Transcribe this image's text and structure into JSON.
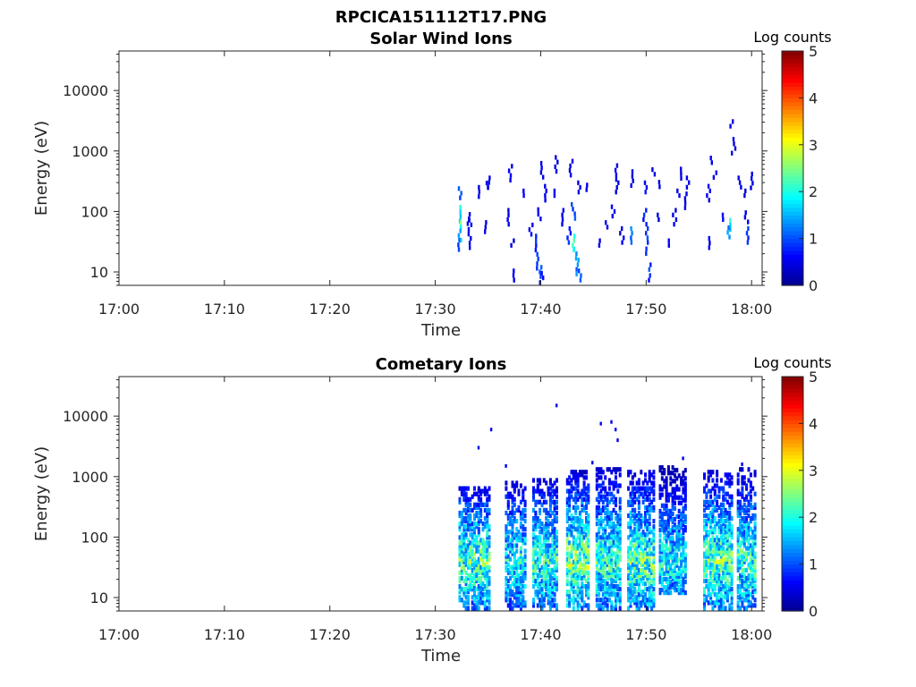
{
  "figure": {
    "title": "RPCICA151112T17.PNG"
  },
  "colormap": [
    "#00008f",
    "#0000ff",
    "#0080ff",
    "#00ffff",
    "#80ff80",
    "#ffff00",
    "#ff8000",
    "#ff0000",
    "#800000"
  ],
  "chart_data": [
    {
      "type": "heatmap",
      "title": "Solar Wind Ions",
      "xlabel": "Time",
      "ylabel": "Energy (eV)",
      "x_ticks": [
        "17:00",
        "17:10",
        "17:20",
        "17:30",
        "17:40",
        "17:50",
        "18:00"
      ],
      "x_range_min": [
        0,
        61
      ],
      "y_scale": "log",
      "y_ticks": [
        "10",
        "100",
        "1000",
        "10000"
      ],
      "y_range_eV": [
        6,
        45000
      ],
      "colorbar": {
        "title": "Log counts",
        "range": [
          0,
          5
        ],
        "ticks": [
          "0",
          "1",
          "2",
          "3",
          "4",
          "5"
        ]
      },
      "description_points": [
        {
          "t": 32.2,
          "e": 200,
          "c": 1.0
        },
        {
          "t": 32.2,
          "e": 90,
          "c": 1.8
        },
        {
          "t": 32.2,
          "e": 60,
          "c": 2.2
        },
        {
          "t": 32.2,
          "e": 40,
          "c": 1.5
        },
        {
          "t": 32.2,
          "e": 28,
          "c": 1.0
        },
        {
          "t": 33.0,
          "e": 75,
          "c": 0.5
        },
        {
          "t": 33.2,
          "e": 55,
          "c": 0.5
        },
        {
          "t": 33.2,
          "e": 30,
          "c": 0.5
        },
        {
          "t": 34.2,
          "e": 210,
          "c": 0.5
        },
        {
          "t": 34.8,
          "e": 270,
          "c": 0.5
        },
        {
          "t": 34.6,
          "e": 55,
          "c": 0.5
        },
        {
          "t": 35.0,
          "e": 300,
          "c": 0.5
        },
        {
          "t": 36.8,
          "e": 80,
          "c": 0.5
        },
        {
          "t": 37.0,
          "e": 430,
          "c": 0.5
        },
        {
          "t": 37.2,
          "e": 30,
          "c": 0.5
        },
        {
          "t": 37.4,
          "e": 8,
          "c": 0.5
        },
        {
          "t": 38.2,
          "e": 200,
          "c": 0.5
        },
        {
          "t": 39.0,
          "e": 50,
          "c": 0.6
        },
        {
          "t": 39.4,
          "e": 30,
          "c": 0.8
        },
        {
          "t": 39.6,
          "e": 15,
          "c": 1.0
        },
        {
          "t": 39.8,
          "e": 10,
          "c": 1.0
        },
        {
          "t": 40.0,
          "e": 8,
          "c": 0.7
        },
        {
          "t": 39.8,
          "e": 90,
          "c": 0.6
        },
        {
          "t": 40.0,
          "e": 480,
          "c": 0.5
        },
        {
          "t": 40.4,
          "e": 200,
          "c": 0.5
        },
        {
          "t": 41.2,
          "e": 200,
          "c": 0.5
        },
        {
          "t": 41.4,
          "e": 600,
          "c": 0.5
        },
        {
          "t": 42.0,
          "e": 80,
          "c": 0.5
        },
        {
          "t": 42.6,
          "e": 40,
          "c": 0.8
        },
        {
          "t": 43.0,
          "e": 100,
          "c": 1.0
        },
        {
          "t": 43.0,
          "e": 30,
          "c": 2.0
        },
        {
          "t": 43.2,
          "e": 20,
          "c": 1.6
        },
        {
          "t": 43.4,
          "e": 12,
          "c": 1.2
        },
        {
          "t": 43.6,
          "e": 8,
          "c": 1.0
        },
        {
          "t": 42.8,
          "e": 520,
          "c": 0.5
        },
        {
          "t": 43.6,
          "e": 250,
          "c": 0.5
        },
        {
          "t": 44.2,
          "e": 250,
          "c": 0.5
        },
        {
          "t": 45.4,
          "e": 30,
          "c": 0.5
        },
        {
          "t": 46.2,
          "e": 60,
          "c": 0.5
        },
        {
          "t": 46.8,
          "e": 100,
          "c": 0.5
        },
        {
          "t": 47.0,
          "e": 440,
          "c": 0.5
        },
        {
          "t": 47.2,
          "e": 250,
          "c": 0.5
        },
        {
          "t": 47.6,
          "e": 40,
          "c": 0.5
        },
        {
          "t": 48.4,
          "e": 40,
          "c": 1.2
        },
        {
          "t": 48.6,
          "e": 350,
          "c": 0.5
        },
        {
          "t": 49.8,
          "e": 250,
          "c": 0.6
        },
        {
          "t": 49.8,
          "e": 80,
          "c": 0.8
        },
        {
          "t": 50.0,
          "e": 40,
          "c": 1.0
        },
        {
          "t": 50.0,
          "e": 22,
          "c": 1.0
        },
        {
          "t": 50.2,
          "e": 12,
          "c": 0.9
        },
        {
          "t": 50.2,
          "e": 8,
          "c": 0.8
        },
        {
          "t": 50.6,
          "e": 450,
          "c": 0.5
        },
        {
          "t": 51.0,
          "e": 80,
          "c": 0.5
        },
        {
          "t": 51.2,
          "e": 280,
          "c": 0.5
        },
        {
          "t": 52.2,
          "e": 30,
          "c": 0.5
        },
        {
          "t": 52.6,
          "e": 80,
          "c": 0.5
        },
        {
          "t": 53.0,
          "e": 200,
          "c": 0.5
        },
        {
          "t": 53.2,
          "e": 420,
          "c": 0.5
        },
        {
          "t": 53.6,
          "e": 150,
          "c": 0.5
        },
        {
          "t": 53.8,
          "e": 300,
          "c": 0.5
        },
        {
          "t": 55.8,
          "e": 200,
          "c": 0.5
        },
        {
          "t": 56.0,
          "e": 30,
          "c": 0.5
        },
        {
          "t": 56.2,
          "e": 700,
          "c": 0.5
        },
        {
          "t": 56.4,
          "e": 400,
          "c": 0.5
        },
        {
          "t": 57.2,
          "e": 80,
          "c": 0.6
        },
        {
          "t": 57.8,
          "e": 60,
          "c": 1.8
        },
        {
          "t": 57.8,
          "e": 45,
          "c": 1.2
        },
        {
          "t": 58.2,
          "e": 1200,
          "c": 0.5
        },
        {
          "t": 58.8,
          "e": 300,
          "c": 0.5
        },
        {
          "t": 59.2,
          "e": 200,
          "c": 0.5
        },
        {
          "t": 59.4,
          "e": 80,
          "c": 0.6
        },
        {
          "t": 59.6,
          "e": 40,
          "c": 0.8
        },
        {
          "t": 60.0,
          "e": 320,
          "c": 0.5
        },
        {
          "t": 58.0,
          "e": 2800,
          "c": 0.5
        }
      ]
    },
    {
      "type": "heatmap",
      "title": "Cometary Ions",
      "xlabel": "Time",
      "ylabel": "Energy (eV)",
      "x_ticks": [
        "17:00",
        "17:10",
        "17:20",
        "17:30",
        "17:40",
        "17:50",
        "18:00"
      ],
      "x_range_min": [
        0,
        61
      ],
      "y_scale": "log",
      "y_ticks": [
        "10",
        "100",
        "1000",
        "10000"
      ],
      "y_range_eV": [
        6,
        45000
      ],
      "colorbar": {
        "title": "Log counts",
        "range": [
          0,
          5
        ],
        "ticks": [
          "0",
          "1",
          "2",
          "3",
          "4",
          "5"
        ]
      },
      "bursts": [
        {
          "t_start": 32.2,
          "t_end": 35.2,
          "e_low": 6,
          "e_high": 700,
          "c_peak": 2.6
        },
        {
          "t_start": 36.6,
          "t_end": 38.6,
          "e_low": 6,
          "e_high": 800,
          "c_peak": 2.2
        },
        {
          "t_start": 39.2,
          "t_end": 41.6,
          "e_low": 6,
          "e_high": 900,
          "c_peak": 2.4
        },
        {
          "t_start": 42.4,
          "t_end": 44.6,
          "e_low": 6,
          "e_high": 1200,
          "c_peak": 2.8
        },
        {
          "t_start": 45.2,
          "t_end": 47.6,
          "e_low": 6,
          "e_high": 1400,
          "c_peak": 2.4
        },
        {
          "t_start": 48.2,
          "t_end": 50.8,
          "e_low": 6,
          "e_high": 1200,
          "c_peak": 2.6
        },
        {
          "t_start": 51.2,
          "t_end": 53.8,
          "e_low": 12,
          "e_high": 1500,
          "c_peak": 2.2
        },
        {
          "t_start": 55.4,
          "t_end": 58.2,
          "e_low": 6,
          "e_high": 1300,
          "c_peak": 2.6
        },
        {
          "t_start": 58.6,
          "t_end": 60.4,
          "e_low": 6,
          "e_high": 1400,
          "c_peak": 2.4
        }
      ],
      "sparse_points": [
        {
          "t": 34.0,
          "e": 3000,
          "c": 0.5
        },
        {
          "t": 35.2,
          "e": 6000,
          "c": 0.5
        },
        {
          "t": 41.4,
          "e": 15000,
          "c": 0.5
        },
        {
          "t": 45.6,
          "e": 7500,
          "c": 0.5
        },
        {
          "t": 46.6,
          "e": 8000,
          "c": 0.5
        },
        {
          "t": 47.0,
          "e": 6000,
          "c": 0.5
        },
        {
          "t": 47.2,
          "e": 4000,
          "c": 0.5
        },
        {
          "t": 53.4,
          "e": 2000,
          "c": 0.5
        },
        {
          "t": 36.6,
          "e": 1500,
          "c": 0.5
        },
        {
          "t": 44.8,
          "e": 1700,
          "c": 0.5
        },
        {
          "t": 59.0,
          "e": 1600,
          "c": 0.5
        }
      ]
    }
  ]
}
